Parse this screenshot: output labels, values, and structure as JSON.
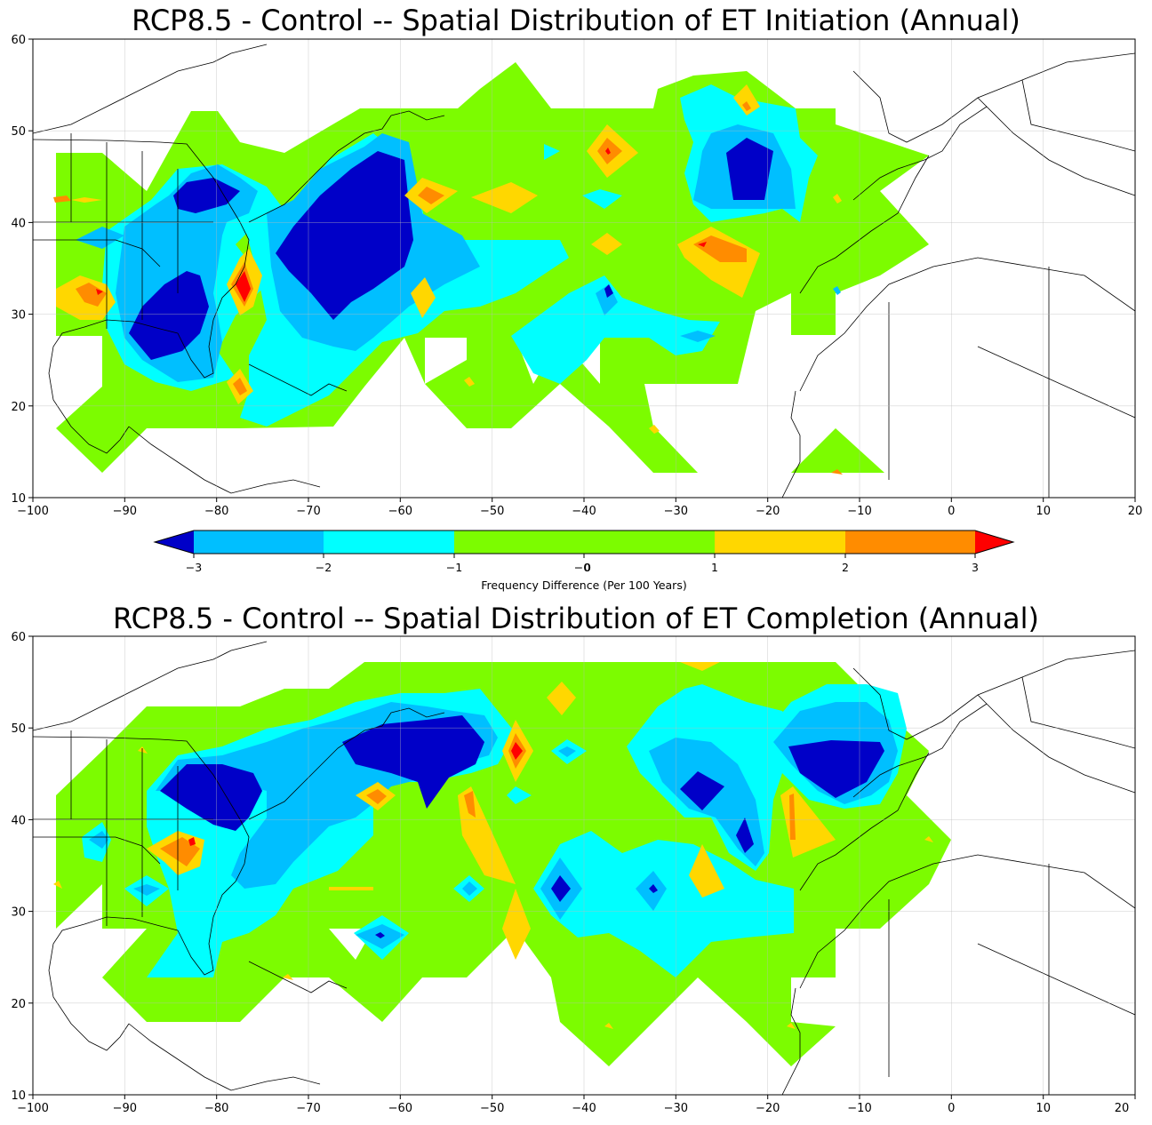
{
  "maps": [
    {
      "title": "RCP8.5 - Control -- Spatial Distribution of ET Initiation (Annual)",
      "x_ticks": [
        "−100",
        "−90",
        "−80",
        "−70",
        "−60",
        "−50",
        "−40",
        "−30",
        "−20",
        "−10",
        "0",
        "10",
        "20"
      ],
      "y_ticks": [
        "10",
        "20",
        "30",
        "40",
        "50",
        "60"
      ],
      "lon_range": [
        -100,
        20
      ],
      "lat_range": [
        10,
        60
      ]
    },
    {
      "title": "RCP8.5 - Control -- Spatial Distribution of ET Completion (Annual)",
      "x_ticks": [
        "−100",
        "−90",
        "−80",
        "−70",
        "−60",
        "−50",
        "−40",
        "−30",
        "−20",
        "−10",
        "0",
        "10",
        "20"
      ],
      "y_ticks": [
        "10",
        "20",
        "30",
        "40",
        "50",
        "60"
      ],
      "lon_range": [
        -100,
        20
      ],
      "lat_range": [
        10,
        60
      ]
    }
  ],
  "colorbar": {
    "label": "Frequency Difference (Per 100 Years)",
    "ticks": [
      "−3",
      "−2",
      "−1",
      "−0",
      "0",
      "1",
      "2",
      "3"
    ],
    "bins": [
      {
        "range": "< -3",
        "color": "#0000c8"
      },
      {
        "range": "-3 to -2",
        "color": "#00bfff"
      },
      {
        "range": "-2 to -1",
        "color": "#00ffff"
      },
      {
        "range": "-1 to 1",
        "color": "#7cfc00"
      },
      {
        "range": "1 to 2",
        "color": "#ffd700"
      },
      {
        "range": "2 to 3",
        "color": "#ff8c00"
      },
      {
        "range": "> 3",
        "color": "#ff0000"
      }
    ]
  }
}
